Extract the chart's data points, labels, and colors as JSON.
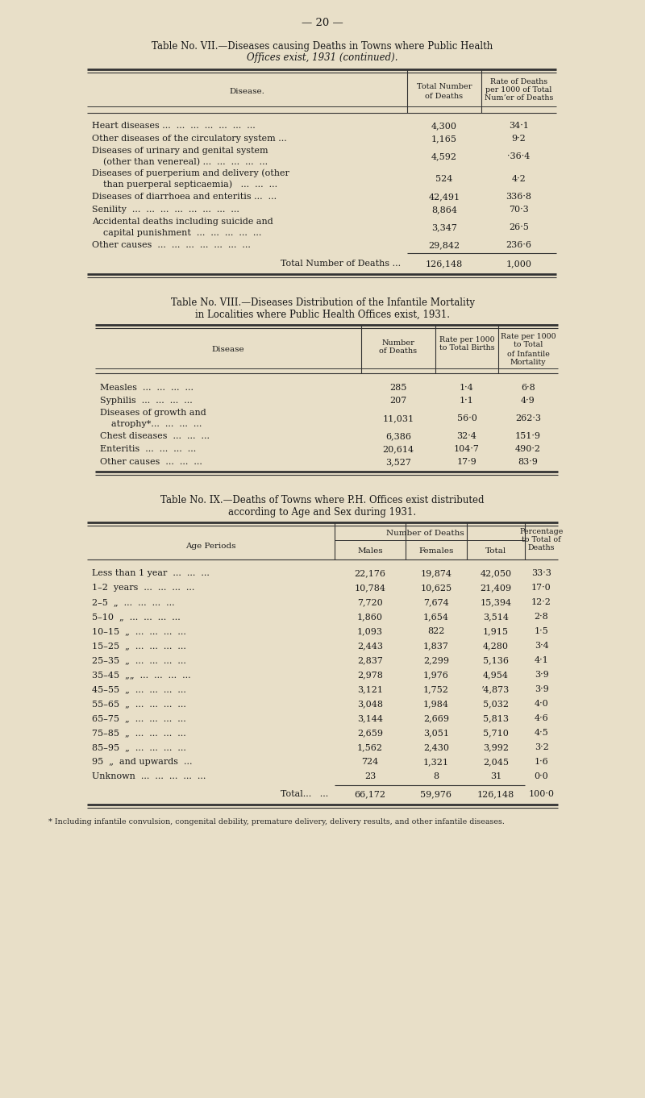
{
  "page_number": "— 20 —",
  "bg_color": "#e8dfc8",
  "table7_title1": "Table No. VII.—Diseases causing Deaths in Towns where Public Health",
  "table7_title2": "Offices exist, 1931 (continued).",
  "table7_rows": [
    [
      "Heart diseases ...  ...  ...  ...  ...  ...  ...",
      "4,300",
      "34·1"
    ],
    [
      "Other diseases of the circulatory system ...",
      "1,165",
      "9·2"
    ],
    [
      "Diseases of urinary and genital system\n    (other than venereal) ...  ...  ...  ...  ...",
      "4,592",
      "·36·4"
    ],
    [
      "Diseases of puerperium and delivery (other\n    than puerperal septicaemia)   ...  ...  ...",
      "524",
      "4·2"
    ],
    [
      "Diseases of diarrhoea and enteritis ...  ...",
      "42,491",
      "336·8"
    ],
    [
      "Senility  ...  ...  ...  ...  ...  ...  ...  ...",
      "8,864",
      "70·3"
    ],
    [
      "Accidental deaths including suicide and\n    capital punishment  ...  ...  ...  ...  ...",
      "3,347",
      "26·5"
    ],
    [
      "Other causes  ...  ...  ...  ...  ...  ...  ...",
      "29,842",
      "236·6"
    ]
  ],
  "table7_total_label": "Total Number of Deaths ...",
  "table7_total_deaths": "126,148",
  "table7_total_rate": "1,000",
  "table8_title1": "Table No. VIII.—Diseases Distribution of the Infantile Mortality",
  "table8_title2": "in Localities where Public Health Offices exist, 1931.",
  "table8_rows": [
    [
      "Measles  ...  ...  ...  ...",
      "285",
      "1·4",
      "6·8"
    ],
    [
      "Syphilis  ...  ...  ...  ...",
      "207",
      "1·1",
      "4·9"
    ],
    [
      "Diseases of growth and\n    atrophy*...  ...  ...  ...",
      "11,031",
      "56·0",
      "262·3"
    ],
    [
      "Chest diseases  ...  ...  ...",
      "6,386",
      "32·4",
      "151·9"
    ],
    [
      "Enteritis  ...  ...  ...  ...",
      "20,614",
      "104·7",
      "490·2"
    ],
    [
      "Other causes  ...  ...  ...",
      "3,527",
      "17·9",
      "83·9"
    ]
  ],
  "table9_title1": "Table No. IX.—Deaths of Towns where P.H. Offices exist distributed",
  "table9_title2": "according to Age and Sex during 1931.",
  "table9_rows": [
    [
      "Less than 1 year  ...  ...  ...",
      "22,176",
      "19,874",
      "42,050",
      "33·3"
    ],
    [
      "1–2  years  ...  ...  ...  ...",
      "10,784",
      "10,625",
      "21,409",
      "17·0"
    ],
    [
      "2–5  „  ...  ...  ...  ...",
      "7,720",
      "7,674",
      "15,394",
      "12·2"
    ],
    [
      "5–10  „  ...  ...  ...  ...",
      "1,860",
      "1,654",
      "3,514",
      "2·8"
    ],
    [
      "10–15  „  ...  ...  ...  ...",
      "1,093",
      "822",
      "1,915",
      "1·5"
    ],
    [
      "15–25  „  ...  ...  ...  ...",
      "2,443",
      "1,837",
      "4,280",
      "3·4"
    ],
    [
      "25–35  „  ...  ...  ...  ...",
      "2,837",
      "2,299",
      "5,136",
      "4·1"
    ],
    [
      "35–45  „„  ...  ...  ...  ...",
      "2,978",
      "1,976",
      "4,954",
      "3·9"
    ],
    [
      "45–55  „  ...  ...  ...  ...",
      "3,121",
      "1,752",
      "ʼ4,873",
      "3·9"
    ],
    [
      "55–65  „  ...  ...  ...  ...",
      "3,048",
      "1,984",
      "5,032",
      "4·0"
    ],
    [
      "65–75  „  ...  ...  ...  ...",
      "3,144",
      "2,669",
      "5,813",
      "4·6"
    ],
    [
      "75–85  „  ...  ...  ...  ...",
      "2,659",
      "3,051",
      "5,710",
      "4·5"
    ],
    [
      "85–95  „  ...  ...  ...  ...",
      "1,562",
      "2,430",
      "3,992",
      "3·2"
    ],
    [
      "95  „  and upwards  ...",
      "724",
      "1,321",
      "2,045",
      "1·6"
    ],
    [
      "Unknown  ...  ...  ...  ...  ...",
      "23",
      "8",
      "31",
      "0·0"
    ]
  ],
  "table9_total_label": "Total...   ...",
  "table9_total_males": "66,172",
  "table9_total_females": "59,976",
  "table9_total_total": "126,148",
  "table9_total_pct": "100·0",
  "footnote": "* Including infantile convulsion, congenital debility, premature delivery, delivery results, and other infantile diseases."
}
